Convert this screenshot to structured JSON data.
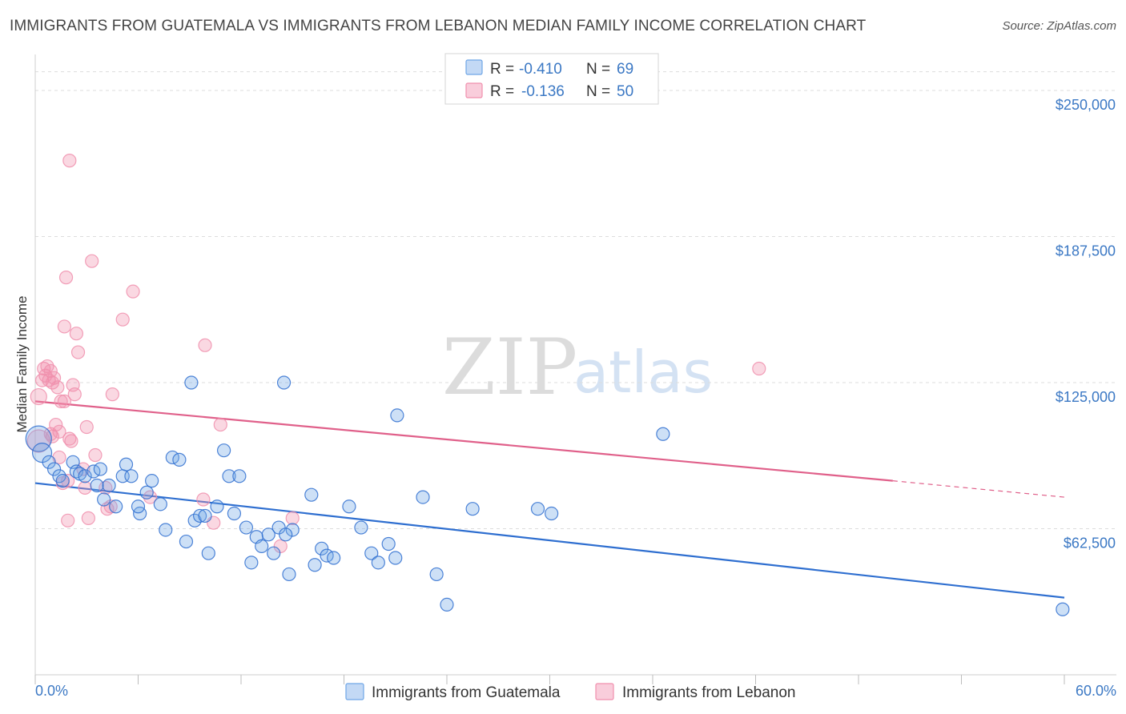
{
  "header": {
    "title": "IMMIGRANTS FROM GUATEMALA VS IMMIGRANTS FROM LEBANON MEDIAN FAMILY INCOME CORRELATION CHART",
    "source": "Source: ZipAtlas.com"
  },
  "watermark": {
    "zip": "ZIP",
    "atlas": "atlas"
  },
  "legend": {
    "rows": [
      {
        "r_label": "R =",
        "r_value": "-0.410",
        "n_label": "N =",
        "n_value": "69"
      },
      {
        "r_label": "R =",
        "r_value": "-0.136",
        "n_label": "N =",
        "n_value": "50"
      }
    ]
  },
  "colors": {
    "guatemala": "#6fa6e6",
    "guatemala_line": "#2f6fd0",
    "lebanon": "#f08fad",
    "lebanon_line": "#e0608a",
    "tick_label": "#3b78c4",
    "grid": "#dddddd"
  },
  "chart_data": {
    "type": "scatter",
    "title": "IMMIGRANTS FROM GUATEMALA VS IMMIGRANTS FROM LEBANON MEDIAN FAMILY INCOME CORRELATION CHART",
    "xlabel": "",
    "ylabel": "Median Family Income",
    "xlim": [
      0,
      60
    ],
    "ylim": [
      0,
      262000
    ],
    "x_tick_labels": [
      "0.0%",
      "60.0%"
    ],
    "y_ticks": [
      62500,
      125000,
      187500,
      250000
    ],
    "y_tick_labels": [
      "$62,500",
      "$125,000",
      "$187,500",
      "$250,000"
    ],
    "series": [
      {
        "name": "Immigrants from Guatemala",
        "color": "#6fa6e6",
        "trend": {
          "x": [
            0,
            60
          ],
          "y": [
            82000,
            33000
          ],
          "dashed_from": null
        },
        "points": [
          [
            0.2,
            101000,
            16
          ],
          [
            0.4,
            95000,
            12
          ],
          [
            0.8,
            91000,
            8
          ],
          [
            1.1,
            88000,
            8
          ],
          [
            1.4,
            85000,
            8
          ],
          [
            1.6,
            83000,
            8
          ],
          [
            2.2,
            91000,
            8
          ],
          [
            2.4,
            87000,
            8
          ],
          [
            2.6,
            86000,
            8
          ],
          [
            2.9,
            85000,
            8
          ],
          [
            3.4,
            87000,
            8
          ],
          [
            3.6,
            81000,
            8
          ],
          [
            3.8,
            88000,
            8
          ],
          [
            4.0,
            75000,
            8
          ],
          [
            4.3,
            81000,
            8
          ],
          [
            4.7,
            72000,
            8
          ],
          [
            5.1,
            85000,
            8
          ],
          [
            5.3,
            90000,
            8
          ],
          [
            5.6,
            85000,
            8
          ],
          [
            6.1,
            69000,
            8
          ],
          [
            6.5,
            78000,
            8
          ],
          [
            6.8,
            83000,
            8
          ],
          [
            7.3,
            73000,
            8
          ],
          [
            7.6,
            62000,
            8
          ],
          [
            8.0,
            93000,
            8
          ],
          [
            8.4,
            92000,
            8
          ],
          [
            8.8,
            57000,
            8
          ],
          [
            9.1,
            125000,
            8
          ],
          [
            9.3,
            66000,
            8
          ],
          [
            9.6,
            68000,
            8
          ],
          [
            9.9,
            68000,
            8
          ],
          [
            10.1,
            52000,
            8
          ],
          [
            10.6,
            72000,
            8
          ],
          [
            11.0,
            96000,
            8
          ],
          [
            11.3,
            85000,
            8
          ],
          [
            11.6,
            69000,
            8
          ],
          [
            11.9,
            85000,
            8
          ],
          [
            12.3,
            63000,
            8
          ],
          [
            12.6,
            48000,
            8
          ],
          [
            12.9,
            59000,
            8
          ],
          [
            13.2,
            55000,
            8
          ],
          [
            13.6,
            60000,
            8
          ],
          [
            13.9,
            52000,
            8
          ],
          [
            14.2,
            63000,
            8
          ],
          [
            14.5,
            125000,
            8
          ],
          [
            14.8,
            43000,
            8
          ],
          [
            15.0,
            62000,
            8
          ],
          [
            16.1,
            77000,
            8
          ],
          [
            16.3,
            47000,
            8
          ],
          [
            16.7,
            54000,
            8
          ],
          [
            17.0,
            51000,
            8
          ],
          [
            17.4,
            50000,
            8
          ],
          [
            18.3,
            72000,
            8
          ],
          [
            19.0,
            63000,
            8
          ],
          [
            19.6,
            52000,
            8
          ],
          [
            20.0,
            48000,
            8
          ],
          [
            20.6,
            56000,
            8
          ],
          [
            21.0,
            50000,
            8
          ],
          [
            21.1,
            111000,
            8
          ],
          [
            22.6,
            76000,
            8
          ],
          [
            23.4,
            43000,
            8
          ],
          [
            24.0,
            30000,
            8
          ],
          [
            25.5,
            71000,
            8
          ],
          [
            29.3,
            71000,
            8
          ],
          [
            30.1,
            69000,
            8
          ],
          [
            36.6,
            103000,
            8
          ],
          [
            59.9,
            28000,
            8
          ],
          [
            14.6,
            60000,
            8
          ],
          [
            6.0,
            72000,
            8
          ]
        ]
      },
      {
        "name": "Immigrants from Lebanon",
        "color": "#f08fad",
        "trend": {
          "x": [
            0,
            50
          ],
          "y": [
            117000,
            83000
          ],
          "dashed_from": 50,
          "dashed_to": [
            60,
            76000
          ]
        },
        "points": [
          [
            0.2,
            119000,
            10
          ],
          [
            0.2,
            100000,
            14
          ],
          [
            0.4,
            126000,
            8
          ],
          [
            0.5,
            131000,
            8
          ],
          [
            0.7,
            132000,
            8
          ],
          [
            0.8,
            126000,
            8
          ],
          [
            0.9,
            130000,
            8
          ],
          [
            0.9,
            103000,
            8
          ],
          [
            1.0,
            125000,
            8
          ],
          [
            1.1,
            127000,
            8
          ],
          [
            1.2,
            107000,
            8
          ],
          [
            1.3,
            123000,
            8
          ],
          [
            1.4,
            93000,
            8
          ],
          [
            1.4,
            104000,
            8
          ],
          [
            1.5,
            117000,
            8
          ],
          [
            1.6,
            82000,
            8
          ],
          [
            1.7,
            149000,
            8
          ],
          [
            1.7,
            117000,
            8
          ],
          [
            1.9,
            83000,
            8
          ],
          [
            1.9,
            66000,
            8
          ],
          [
            2.0,
            220000,
            8
          ],
          [
            2.0,
            101000,
            8
          ],
          [
            2.1,
            100000,
            8
          ],
          [
            2.2,
            124000,
            8
          ],
          [
            2.3,
            120000,
            8
          ],
          [
            2.4,
            146000,
            8
          ],
          [
            2.5,
            138000,
            8
          ],
          [
            2.9,
            80000,
            8
          ],
          [
            3.0,
            106000,
            8
          ],
          [
            3.1,
            67000,
            8
          ],
          [
            3.3,
            177000,
            8
          ],
          [
            3.5,
            94000,
            8
          ],
          [
            4.1,
            80000,
            8
          ],
          [
            4.2,
            71000,
            8
          ],
          [
            4.4,
            72000,
            8
          ],
          [
            4.5,
            120000,
            8
          ],
          [
            5.1,
            152000,
            8
          ],
          [
            5.7,
            164000,
            8
          ],
          [
            6.7,
            76000,
            8
          ],
          [
            9.8,
            75000,
            8
          ],
          [
            9.9,
            141000,
            8
          ],
          [
            10.4,
            65000,
            8
          ],
          [
            10.8,
            107000,
            8
          ],
          [
            14.3,
            55000,
            8
          ],
          [
            15.0,
            67000,
            8
          ],
          [
            42.2,
            131000,
            8
          ],
          [
            1.8,
            170000,
            8
          ],
          [
            0.6,
            128000,
            8
          ],
          [
            1.0,
            102000,
            8
          ],
          [
            2.8,
            88000,
            8
          ]
        ]
      }
    ],
    "legend_position": "top-center"
  },
  "bottom_legend": {
    "guatemala": "Immigrants from Guatemala",
    "lebanon": "Immigrants from Lebanon"
  }
}
